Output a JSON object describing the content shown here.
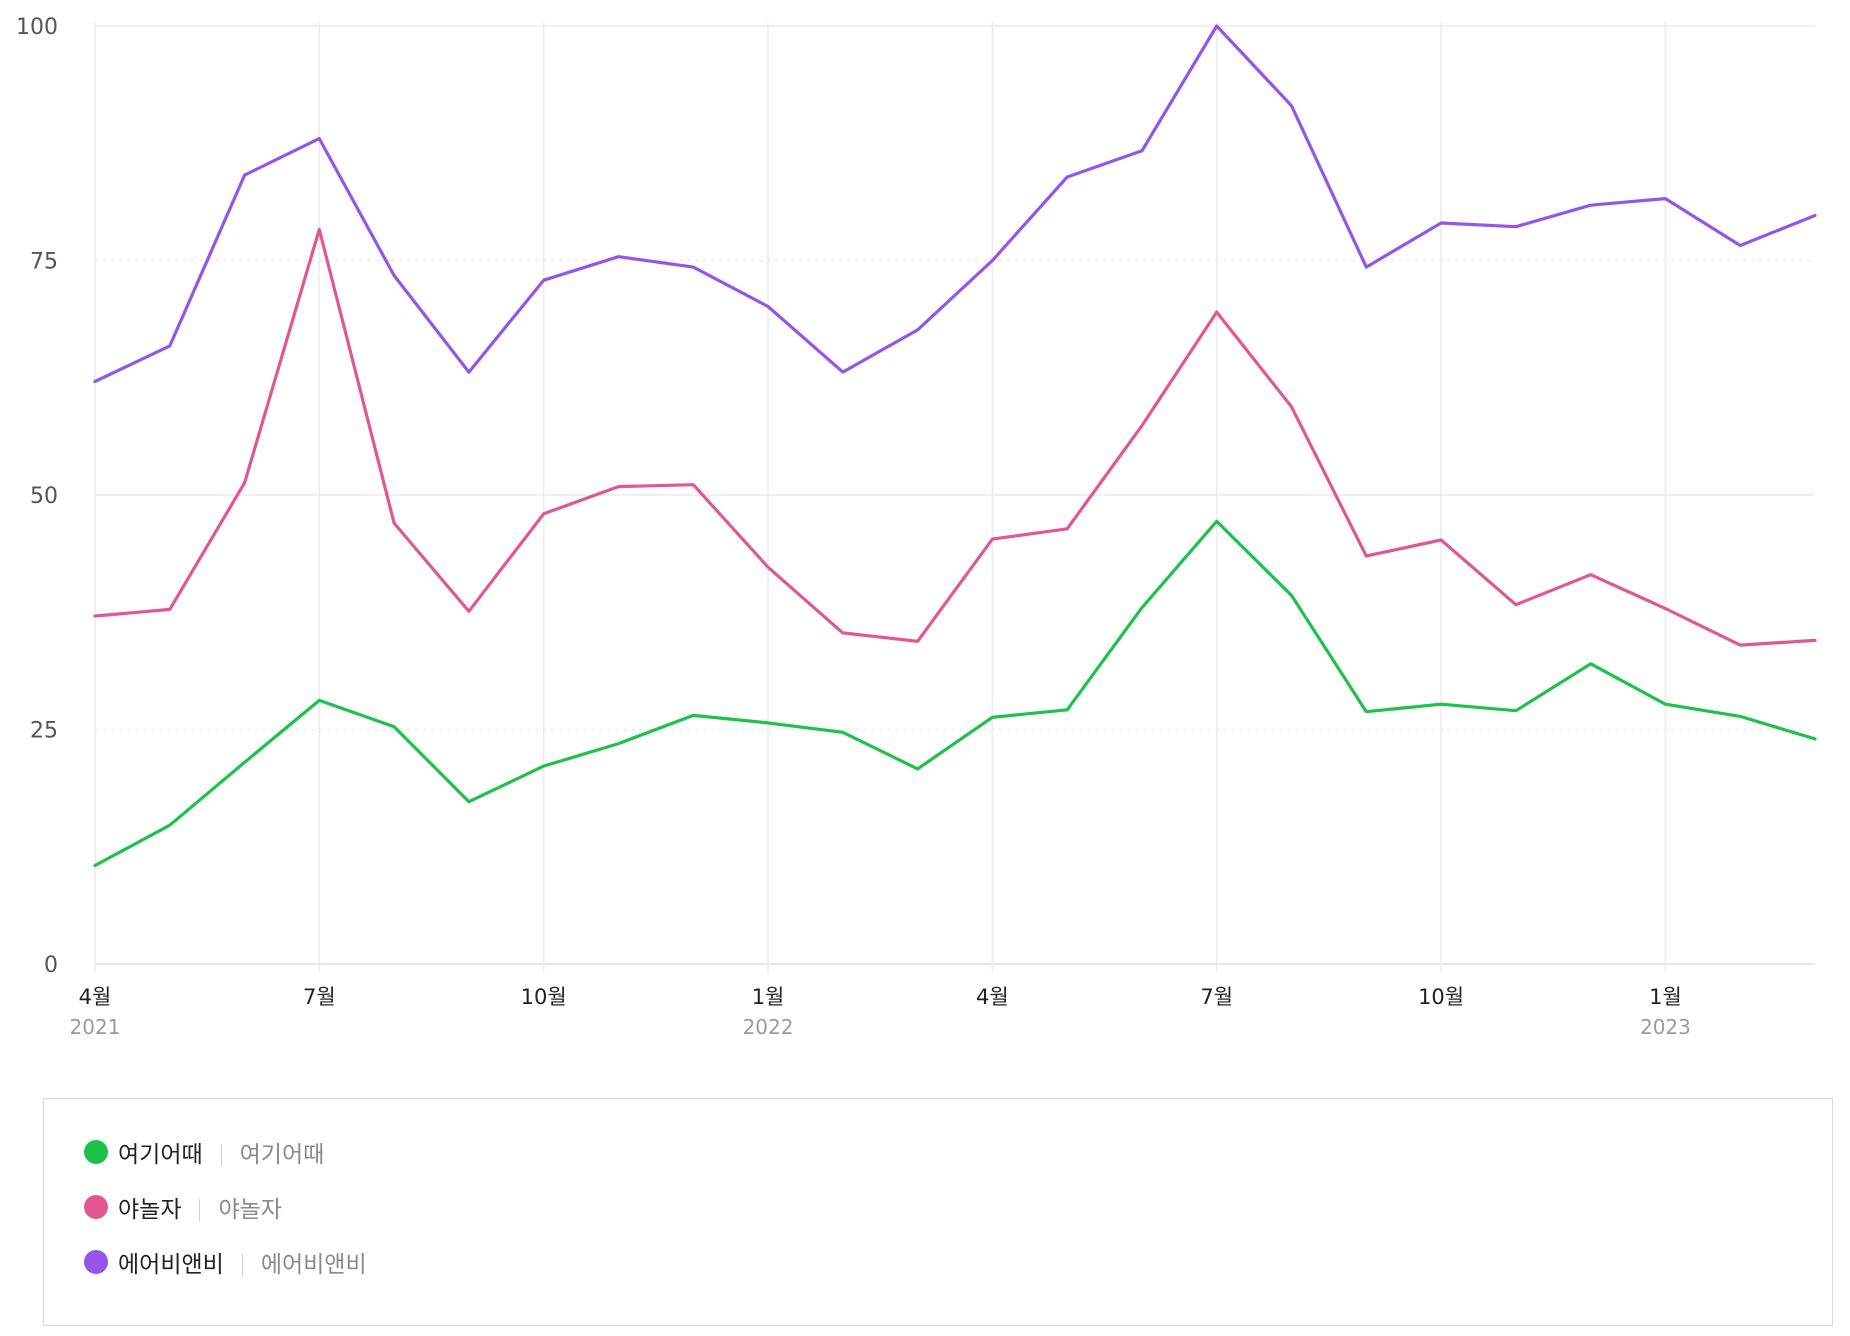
{
  "chart_data": {
    "type": "line",
    "title": "",
    "xlabel": "",
    "ylabel": "",
    "ylim": [
      0,
      100
    ],
    "yticks": [
      0,
      25,
      50,
      75,
      100
    ],
    "grid": true,
    "x": [
      "2021-04",
      "2021-05",
      "2021-06",
      "2021-07",
      "2021-08",
      "2021-09",
      "2021-10",
      "2021-11",
      "2021-12",
      "2022-01",
      "2022-02",
      "2022-03",
      "2022-04",
      "2022-05",
      "2022-06",
      "2022-07",
      "2022-08",
      "2022-09",
      "2022-10",
      "2022-11",
      "2022-12",
      "2023-01",
      "2023-02",
      "2023-03"
    ],
    "x_tick_labels": [
      {
        "index": 0,
        "month": "4월",
        "year": "2021"
      },
      {
        "index": 3,
        "month": "7월",
        "year": ""
      },
      {
        "index": 6,
        "month": "10월",
        "year": ""
      },
      {
        "index": 9,
        "month": "1월",
        "year": "2022"
      },
      {
        "index": 12,
        "month": "4월",
        "year": ""
      },
      {
        "index": 15,
        "month": "7월",
        "year": ""
      },
      {
        "index": 18,
        "month": "10월",
        "year": ""
      },
      {
        "index": 21,
        "month": "1월",
        "year": "2023"
      }
    ],
    "series": [
      {
        "name": "여기어때",
        "sub": "여기어때",
        "color": "#1dc24a",
        "values": [
          10.5,
          14.8,
          21.5,
          28.1,
          25.3,
          17.3,
          21.1,
          23.5,
          26.5,
          25.7,
          24.7,
          20.8,
          26.3,
          27.1,
          38.0,
          47.2,
          39.3,
          26.9,
          27.7,
          27.0,
          32.0,
          27.7,
          26.4,
          24.0
        ]
      },
      {
        "name": "야놀자",
        "sub": "야놀자",
        "color": "#e0588f",
        "values": [
          37.1,
          37.8,
          51.3,
          78.3,
          47.0,
          37.6,
          48.0,
          50.9,
          51.1,
          42.3,
          35.3,
          34.4,
          45.3,
          46.4,
          57.4,
          69.5,
          59.4,
          43.5,
          45.2,
          38.3,
          41.5,
          37.9,
          34.0,
          34.5
        ]
      },
      {
        "name": "에어비앤비",
        "sub": "에어비앤비",
        "color": "#9257e8",
        "values": [
          62.1,
          65.9,
          84.1,
          88.0,
          73.4,
          63.1,
          72.9,
          75.4,
          74.3,
          70.1,
          63.1,
          67.6,
          75.0,
          83.9,
          86.7,
          100.0,
          91.5,
          74.3,
          79.0,
          78.6,
          80.9,
          81.6,
          76.6,
          79.8
        ]
      }
    ]
  }
}
